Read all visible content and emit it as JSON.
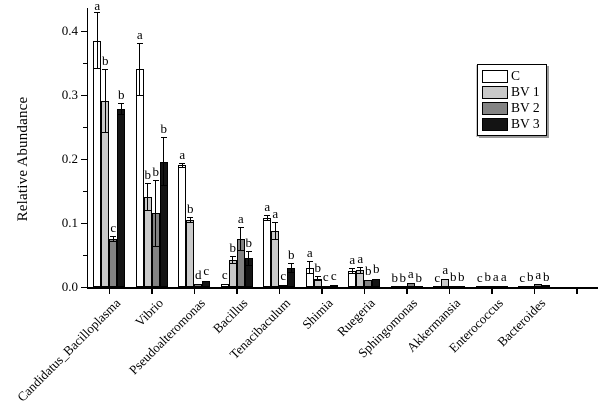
{
  "figure": {
    "background_color": "#ffffff",
    "axis_color": "#000000"
  },
  "chart_data": {
    "type": "bar",
    "title": "",
    "xlabel": "",
    "ylabel": "Relative Abundance",
    "ylim": [
      0,
      0.44
    ],
    "yticks": [
      0.0,
      0.1,
      0.2,
      0.3,
      0.4
    ],
    "ytick_labels": [
      "0.0",
      "0.1",
      "0.2",
      "0.3",
      "0.4"
    ],
    "minor_ytick_step": 0.05,
    "grid": false,
    "legend_position": "upper right",
    "bar_group_style": "grouped, error bars, significance letters above bars",
    "categories": [
      "Candidatus_Bacilloplasma",
      "Vibrio",
      "Pseudoalteromonas",
      "Bacillus",
      "Tenacibaculum",
      "Shimia",
      "Ruegeria",
      "Sphingomonas",
      "Akkermansia",
      "Enterococcus",
      "Bacteroides"
    ],
    "series": [
      {
        "name": "C",
        "color": "#ffffff",
        "values": [
          0.385,
          0.34,
          0.19,
          0.004,
          0.108,
          0.03,
          0.025,
          0.001,
          0.001,
          0.0008,
          0.0008
        ],
        "errors": [
          0.045,
          0.042,
          0.004,
          0.002,
          0.005,
          0.01,
          0.004,
          0.0005,
          0.0005,
          0.0005,
          0.0005
        ],
        "letters": [
          "a",
          "a",
          "a",
          "c",
          "a",
          "a",
          "a",
          "b",
          "c",
          "c",
          "c"
        ]
      },
      {
        "name": "BV 1",
        "color": "#c9c9c9",
        "values": [
          0.29,
          0.14,
          0.105,
          0.042,
          0.088,
          0.013,
          0.026,
          0.001,
          0.012,
          0.0015,
          0.002
        ],
        "errors": [
          0.05,
          0.022,
          0.005,
          0.006,
          0.014,
          0.004,
          0.005,
          0.0005,
          0.002,
          0.001,
          0.001
        ],
        "letters": [
          "b",
          "b",
          "b",
          "b",
          "a",
          "b",
          "a",
          "b",
          "a",
          "b",
          "b"
        ]
      },
      {
        "name": "BV 2",
        "color": "#838383",
        "values": [
          0.075,
          0.115,
          0.004,
          0.075,
          0.003,
          0.002,
          0.011,
          0.006,
          0.0015,
          0.002,
          0.005
        ],
        "errors": [
          0.005,
          0.052,
          0.002,
          0.018,
          0.002,
          0.001,
          0.002,
          0.002,
          0.001,
          0.001,
          0.002
        ],
        "letters": [
          "c",
          "b",
          "d",
          "a",
          "c",
          "c",
          "b",
          "a",
          "b",
          "a",
          "a"
        ]
      },
      {
        "name": "BV 3",
        "color": "#141414",
        "values": [
          0.278,
          0.196,
          0.009,
          0.045,
          0.03,
          0.003,
          0.013,
          0.0015,
          0.0015,
          0.002,
          0.0025
        ],
        "errors": [
          0.01,
          0.038,
          0.003,
          0.012,
          0.008,
          0.001,
          0.002,
          0.0005,
          0.001,
          0.001,
          0.001
        ],
        "letters": [
          "b",
          "b",
          "c",
          "b",
          "b",
          "c",
          "b",
          "b",
          "b",
          "a",
          "b"
        ]
      }
    ]
  }
}
